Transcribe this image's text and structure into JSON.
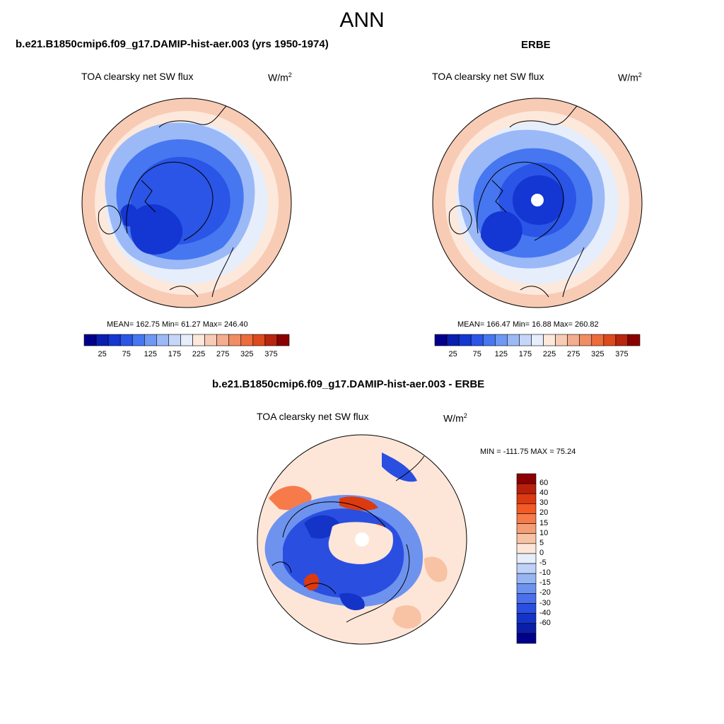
{
  "page": {
    "season": "ANN"
  },
  "panels": {
    "model": {
      "title": "b.e21.B1850cmip6.f09_g17.DAMIP-hist-aer.003 (yrs 1950-1974)",
      "variable": "TOA clearsky net SW flux",
      "units_base": "W/m",
      "units_exp": "2",
      "stats": "MEAN= 162.75  Min=  61.27  Max= 246.40",
      "stat_values": {
        "mean": 162.75,
        "min": 61.27,
        "max": 246.4
      }
    },
    "obs": {
      "title": "ERBE",
      "variable": "TOA clearsky net SW flux",
      "units_base": "W/m",
      "units_exp": "2",
      "stats": "MEAN= 166.47  Min=  16.88  Max= 260.82",
      "stat_values": {
        "mean": 166.47,
        "min": 16.88,
        "max": 260.82
      }
    },
    "diff": {
      "title": "b.e21.B1850cmip6.f09_g17.DAMIP-hist-aer.003 - ERBE",
      "variable": "TOA clearsky net SW flux",
      "units_base": "W/m",
      "units_exp": "2",
      "stats": "MIN = -111.75 MAX =  75.24",
      "stat_values": {
        "min": -111.75,
        "max": 75.24
      }
    }
  },
  "colorbars": {
    "field": {
      "colors": [
        "#00008b",
        "#0a1fb0",
        "#1436d2",
        "#2a55e6",
        "#4677f0",
        "#6e98f4",
        "#9bb9f7",
        "#c5d6fa",
        "#e6eefc",
        "#fde8dc",
        "#f8cbb4",
        "#f5ad8f",
        "#f28c63",
        "#ec6c3c",
        "#dd4a1e",
        "#b8260f",
        "#8b0000"
      ],
      "ticks": [
        "25",
        "75",
        "125",
        "175",
        "225",
        "275",
        "325",
        "375"
      ]
    },
    "diff": {
      "colors": [
        "#8b0000",
        "#b8200c",
        "#dc3a10",
        "#f45a24",
        "#f77b4a",
        "#f59e76",
        "#f8c2a4",
        "#fde6d8",
        "#e6eefc",
        "#bed2f8",
        "#98b5f3",
        "#6e93ef",
        "#4a70ec",
        "#2a4fe0",
        "#1434c8",
        "#0a1ea8",
        "#00008b"
      ],
      "labels": [
        "60",
        "40",
        "30",
        "20",
        "15",
        "10",
        "5",
        "0",
        "-5",
        "-10",
        "-15",
        "-20",
        "-30",
        "-40",
        "-60"
      ]
    }
  }
}
